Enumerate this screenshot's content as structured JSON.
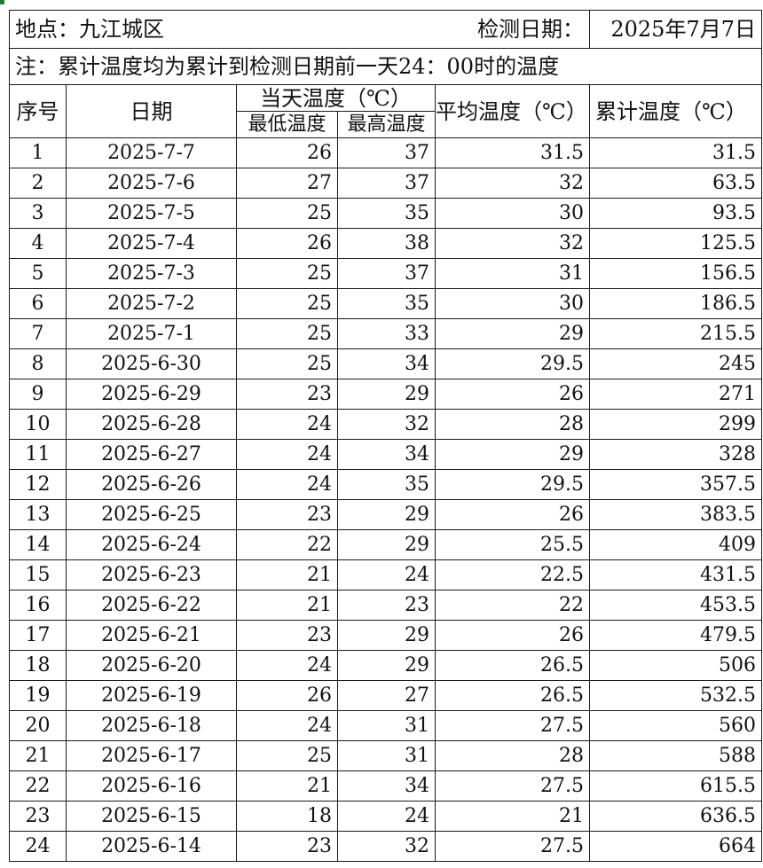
{
  "header": {
    "location": "地点：九江城区",
    "date_label": "检测日期：",
    "date_value": "2025年7月7日"
  },
  "note": "注：累计温度均为累计到检测日期前一天24：00时的温度",
  "columns": {
    "index": "序号",
    "date": "日期",
    "day_temp": "当天温度（℃）",
    "min_temp": "最低温度",
    "max_temp": "最高温度",
    "avg_temp": "平均温度（℃）",
    "cum_temp": "累计温度（℃）"
  },
  "rows": [
    {
      "no": "1",
      "date": "2025-7-7",
      "min": "26",
      "max": "37",
      "avg": "31.5",
      "cum": "31.5"
    },
    {
      "no": "2",
      "date": "2025-7-6",
      "min": "27",
      "max": "37",
      "avg": "32",
      "cum": "63.5"
    },
    {
      "no": "3",
      "date": "2025-7-5",
      "min": "25",
      "max": "35",
      "avg": "30",
      "cum": "93.5"
    },
    {
      "no": "4",
      "date": "2025-7-4",
      "min": "26",
      "max": "38",
      "avg": "32",
      "cum": "125.5"
    },
    {
      "no": "5",
      "date": "2025-7-3",
      "min": "25",
      "max": "37",
      "avg": "31",
      "cum": "156.5"
    },
    {
      "no": "6",
      "date": "2025-7-2",
      "min": "25",
      "max": "35",
      "avg": "30",
      "cum": "186.5"
    },
    {
      "no": "7",
      "date": "2025-7-1",
      "min": "25",
      "max": "33",
      "avg": "29",
      "cum": "215.5"
    },
    {
      "no": "8",
      "date": "2025-6-30",
      "min": "25",
      "max": "34",
      "avg": "29.5",
      "cum": "245"
    },
    {
      "no": "9",
      "date": "2025-6-29",
      "min": "23",
      "max": "29",
      "avg": "26",
      "cum": "271"
    },
    {
      "no": "10",
      "date": "2025-6-28",
      "min": "24",
      "max": "32",
      "avg": "28",
      "cum": "299"
    },
    {
      "no": "11",
      "date": "2025-6-27",
      "min": "24",
      "max": "34",
      "avg": "29",
      "cum": "328"
    },
    {
      "no": "12",
      "date": "2025-6-26",
      "min": "24",
      "max": "35",
      "avg": "29.5",
      "cum": "357.5"
    },
    {
      "no": "13",
      "date": "2025-6-25",
      "min": "23",
      "max": "29",
      "avg": "26",
      "cum": "383.5"
    },
    {
      "no": "14",
      "date": "2025-6-24",
      "min": "22",
      "max": "29",
      "avg": "25.5",
      "cum": "409"
    },
    {
      "no": "15",
      "date": "2025-6-23",
      "min": "21",
      "max": "24",
      "avg": "22.5",
      "cum": "431.5"
    },
    {
      "no": "16",
      "date": "2025-6-22",
      "min": "21",
      "max": "23",
      "avg": "22",
      "cum": "453.5"
    },
    {
      "no": "17",
      "date": "2025-6-21",
      "min": "23",
      "max": "29",
      "avg": "26",
      "cum": "479.5"
    },
    {
      "no": "18",
      "date": "2025-6-20",
      "min": "24",
      "max": "29",
      "avg": "26.5",
      "cum": "506"
    },
    {
      "no": "19",
      "date": "2025-6-19",
      "min": "26",
      "max": "27",
      "avg": "26.5",
      "cum": "532.5"
    },
    {
      "no": "20",
      "date": "2025-6-18",
      "min": "24",
      "max": "31",
      "avg": "27.5",
      "cum": "560"
    },
    {
      "no": "21",
      "date": "2025-6-17",
      "min": "25",
      "max": "31",
      "avg": "28",
      "cum": "588"
    },
    {
      "no": "22",
      "date": "2025-6-16",
      "min": "21",
      "max": "34",
      "avg": "27.5",
      "cum": "615.5"
    },
    {
      "no": "23",
      "date": "2025-6-15",
      "min": "18",
      "max": "24",
      "avg": "21",
      "cum": "636.5"
    },
    {
      "no": "24",
      "date": "2025-6-14",
      "min": "23",
      "max": "32",
      "avg": "27.5",
      "cum": "664"
    }
  ]
}
